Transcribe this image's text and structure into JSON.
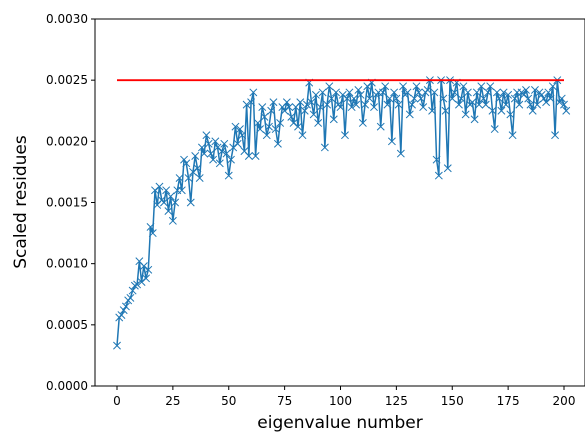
{
  "chart_data": {
    "type": "line",
    "xlabel": "eigenvalue number",
    "ylabel": "Scaled residues",
    "xlim": [
      -10,
      205
    ],
    "ylim": [
      0,
      0.003
    ],
    "x_ticks": [
      "0",
      "25",
      "50",
      "75",
      "100",
      "125",
      "150",
      "175",
      "200"
    ],
    "y_ticks": [
      "0.0000",
      "0.0005",
      "0.0010",
      "0.0015",
      "0.0020",
      "0.0025",
      "0.0030"
    ],
    "grid": false,
    "legend": "none",
    "series": [
      {
        "color": "#1f77b4",
        "marker": "x",
        "x_start": 0,
        "x_step": 1,
        "values": [
          0.00033,
          0.00056,
          0.00058,
          0.00062,
          0.00065,
          0.0007,
          0.00072,
          0.00078,
          0.00082,
          0.00083,
          0.00102,
          0.00085,
          0.00098,
          0.00088,
          0.00095,
          0.0013,
          0.00125,
          0.0016,
          0.00148,
          0.00163,
          0.00152,
          0.0015,
          0.0016,
          0.00143,
          0.00155,
          0.00135,
          0.0015,
          0.0016,
          0.0017,
          0.0016,
          0.00185,
          0.00182,
          0.0017,
          0.0015,
          0.00175,
          0.00188,
          0.00178,
          0.0017,
          0.00195,
          0.0019,
          0.00205,
          0.00198,
          0.0019,
          0.00185,
          0.002,
          0.00195,
          0.00182,
          0.00192,
          0.00198,
          0.0019,
          0.00172,
          0.00185,
          0.00195,
          0.00212,
          0.00198,
          0.0021,
          0.00205,
          0.00192,
          0.0023,
          0.00188,
          0.00232,
          0.0024,
          0.00188,
          0.00215,
          0.0021,
          0.00228,
          0.0022,
          0.00205,
          0.00212,
          0.00225,
          0.00232,
          0.0021,
          0.00198,
          0.00215,
          0.00228,
          0.00225,
          0.00232,
          0.00228,
          0.0022,
          0.00215,
          0.00228,
          0.00212,
          0.00232,
          0.00205,
          0.00225,
          0.0023,
          0.00248,
          0.00232,
          0.00222,
          0.00238,
          0.00215,
          0.00228,
          0.0024,
          0.00195,
          0.0023,
          0.00245,
          0.00235,
          0.00218,
          0.0024,
          0.0023,
          0.00228,
          0.00238,
          0.00205,
          0.00235,
          0.0024,
          0.00228,
          0.00235,
          0.0023,
          0.00242,
          0.00238,
          0.00215,
          0.0023,
          0.00245,
          0.00235,
          0.00248,
          0.00228,
          0.00238,
          0.0024,
          0.00212,
          0.0024,
          0.00245,
          0.0023,
          0.00235,
          0.002,
          0.0024,
          0.00235,
          0.0023,
          0.0019,
          0.00245,
          0.00238,
          0.0024,
          0.00222,
          0.0023,
          0.00235,
          0.00245,
          0.0024,
          0.00235,
          0.00228,
          0.0024,
          0.00242,
          0.0025,
          0.00225,
          0.0024,
          0.00185,
          0.00172,
          0.0025,
          0.00235,
          0.00225,
          0.00178,
          0.0025,
          0.00235,
          0.0024,
          0.00248,
          0.0023,
          0.00235,
          0.00245,
          0.00222,
          0.0024,
          0.0023,
          0.00232,
          0.00218,
          0.0024,
          0.0023,
          0.00245,
          0.00235,
          0.0023,
          0.0024,
          0.00245,
          0.00225,
          0.0021,
          0.0024,
          0.00235,
          0.00225,
          0.0024,
          0.0023,
          0.00238,
          0.00222,
          0.00205,
          0.00235,
          0.0024,
          0.0023,
          0.0024,
          0.00238,
          0.00242,
          0.00235,
          0.0023,
          0.00225,
          0.00242,
          0.0023,
          0.0024,
          0.00238,
          0.00235,
          0.00232,
          0.0024,
          0.00235,
          0.00245,
          0.00205,
          0.0025,
          0.00232,
          0.00235,
          0.0023,
          0.00225
        ]
      },
      {
        "color": "#ff0000",
        "marker": "none",
        "x": [
          0,
          200
        ],
        "values": [
          0.0025,
          0.0025
        ]
      }
    ]
  }
}
